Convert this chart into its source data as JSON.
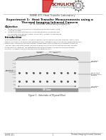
{
  "page_bg": "#ffffff",
  "header_line_color": "#cccccc",
  "schulich_color": "#8B0000",
  "course": "ENME 471 Heat Transfer Laboratory",
  "title_line1": "Experiment 1:  Heat Transfer Measurements using a",
  "title_line2": "Thermal Imaging Infrared Camera",
  "subtitle": "Dr. W. Rosehart (w.rosehart@ucalgary.ca)",
  "section_objective": "Objective",
  "section_intro": "Introduction",
  "footer_left": "ENME 471",
  "footer_center": "1",
  "footer_right": "Thermal Imaging Infrared Camera",
  "fig_caption": "Figure 1 - Schematic of Physical Block",
  "obj_lines": [
    "1.   To demonstrate the principle of temperature measurement using",
    "      infrared camera.",
    "2.   To demonstrate the principle of one-dimensional conduction and",
    "      to compare and identify natural convection (Chapter 9) and forced",
    "      from the two surfaces."
  ],
  "intro_lines": [
    "One-dimensional heat transfer is used extensively for the analysis of many different types of heat",
    "transfer problems. The experiment performed here is straightforward and can be represented as one-",
    "dimensional conduction through different copper blocks that is subjected to different conditions.",
    "The heat then conducts through the block to direct questions to the room environment via both",
    "convection and radiation. The temperature of the free surface is measured using an infrared",
    "camera. A schematic of the aluminum block is shown in Fig. 1."
  ]
}
